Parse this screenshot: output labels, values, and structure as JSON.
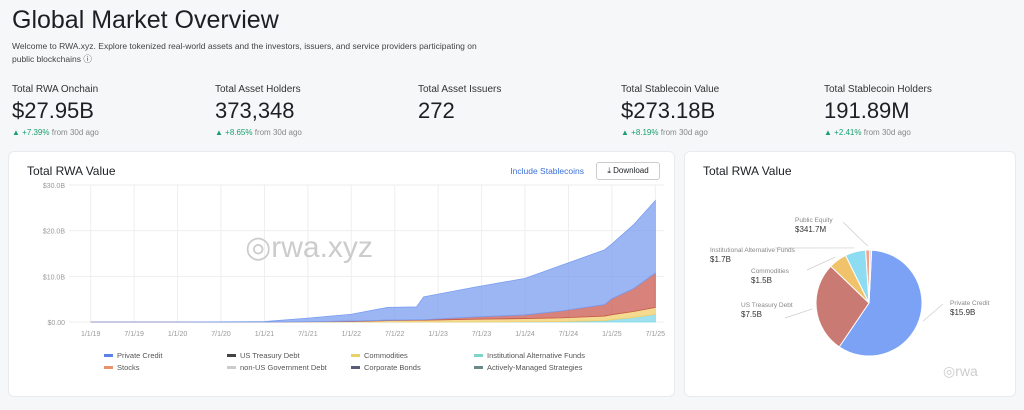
{
  "header": {
    "title": "Global Market Overview",
    "subtitle": "Welcome to RWA.xyz. Explore tokenized real-world assets and the investors, issuers, and service providers participating on public blockchains ⓘ"
  },
  "stats": [
    {
      "label": "Total RWA Onchain",
      "value": "$27.95B",
      "change": "▲ +7.39%",
      "suffix": " from 30d ago"
    },
    {
      "label": "Total Asset Holders",
      "value": "373,348",
      "change": "▲ +8.65%",
      "suffix": " from 30d ago"
    },
    {
      "label": "Total Asset Issuers",
      "value": "272",
      "change": "",
      "suffix": ""
    },
    {
      "label": "Total Stablecoin Value",
      "value": "$273.18B",
      "change": "▲ +8.19%",
      "suffix": " from 30d ago"
    },
    {
      "label": "Total Stablecoin Holders",
      "value": "191.89M",
      "change": "▲ +2.41%",
      "suffix": " from 30d ago"
    }
  ],
  "area_card": {
    "title": "Total RWA Value",
    "include_label": "Include Stablecoins",
    "download_label": "⤓ Download"
  },
  "pie_card": {
    "title": "Total RWA Value"
  },
  "watermark": "rwa.xyz",
  "chart_data": [
    {
      "type": "area",
      "stacked": true,
      "title": "Total RWA Value",
      "x": [
        "2019-01",
        "2020-01",
        "2021-01",
        "2021-07",
        "2022-01",
        "2022-06",
        "2022-10",
        "2022-11",
        "2023-06",
        "2024-01",
        "2024-06",
        "2024-12",
        "2025-01",
        "2025-04",
        "2025-07"
      ],
      "xticks": [
        "1/1/19",
        "7/1/19",
        "1/1/20",
        "7/1/20",
        "1/1/21",
        "7/1/21",
        "1/1/22",
        "7/1/22",
        "1/1/23",
        "7/1/23",
        "1/1/24",
        "7/1/24",
        "1/1/25",
        "7/1/25"
      ],
      "yticks": [
        "$0.00",
        "$10.0B",
        "$20.0B",
        "$30.0B"
      ],
      "ylim": [
        0,
        30
      ],
      "grid": true,
      "legend": "bottom",
      "series": [
        {
          "name": "Institutional Alternative Funds",
          "color": "#7fd6e8",
          "values": [
            0,
            0,
            0,
            0,
            0,
            0,
            0,
            0,
            0,
            0.05,
            0.1,
            0.3,
            0.5,
            1,
            1.7
          ]
        },
        {
          "name": "Commodities",
          "color": "#f2cf6b",
          "values": [
            0,
            0,
            0,
            0.05,
            0.1,
            0.3,
            0.4,
            0.4,
            0.6,
            0.7,
            0.8,
            1,
            1.1,
            1.3,
            1.5
          ]
        },
        {
          "name": "US Treasury Debt",
          "color": "#c9594f",
          "values": [
            0,
            0,
            0,
            0,
            0.1,
            0.1,
            0.1,
            0.1,
            0.5,
            0.8,
            1.5,
            2.5,
            3.5,
            5,
            7.5
          ]
        },
        {
          "name": "Private Credit",
          "color": "#7b9ef0",
          "values": [
            0,
            0,
            0.1,
            0.8,
            1.5,
            2.8,
            2.8,
            5,
            6.5,
            8,
            10,
            12,
            12,
            14,
            15.9
          ]
        }
      ],
      "legend_items": [
        {
          "name": "Private Credit",
          "color": "#5b82e6"
        },
        {
          "name": "US Treasury Debt",
          "color": "#444"
        },
        {
          "name": "Commodities",
          "color": "#e8d36a"
        },
        {
          "name": "Institutional Alternative Funds",
          "color": "#7fd6c8"
        },
        {
          "name": "Stocks",
          "color": "#e8936a"
        },
        {
          "name": "non-US Government Debt",
          "color": "#ccc"
        },
        {
          "name": "Corporate Bonds",
          "color": "#5a5a7a"
        },
        {
          "name": "Actively-Managed Strategies",
          "color": "#6a8a8a"
        }
      ]
    },
    {
      "type": "pie",
      "title": "Total RWA Value",
      "slices": [
        {
          "name": "Private Credit",
          "label": "$15.9B",
          "value": 15.9,
          "color": "#7ba2f5"
        },
        {
          "name": "US Treasury Debt",
          "label": "$7.5B",
          "value": 7.5,
          "color": "#c97a72"
        },
        {
          "name": "Commodities",
          "label": "$1.5B",
          "value": 1.5,
          "color": "#f0c26a"
        },
        {
          "name": "Institutional Alternative Funds",
          "label": "$1.7B",
          "value": 1.7,
          "color": "#8ddcf2"
        },
        {
          "name": "Public Equity",
          "label": "$341.7M",
          "value": 0.34,
          "color": "#f0a58a"
        },
        {
          "name": "",
          "label": "",
          "value": 0.15,
          "color": "#d9c8f0"
        }
      ]
    }
  ]
}
